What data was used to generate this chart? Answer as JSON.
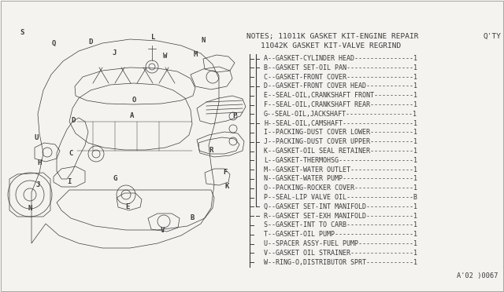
{
  "bg_color": "#f5f3ef",
  "notes_header": "NOTES; 11011K GASKET KIT-ENGINE REPAIR",
  "notes_sub": "11042K GASKET KIT-VALVE REGRIND",
  "qty_header": "Q'TY",
  "footer": "A'02 )0067",
  "parts": [
    {
      "label": "A",
      "desc": "GASKET-CYLINDER HEAD",
      "qty": "1",
      "lvl": 2
    },
    {
      "label": "B",
      "desc": "GASKET SET-OIL PAN",
      "qty": "1",
      "lvl": 2
    },
    {
      "label": "C",
      "desc": "GASKET-FRONT COVER",
      "qty": "1",
      "lvl": 3
    },
    {
      "label": "D",
      "desc": "GASKET-FRONT COVER HEAD",
      "qty": "1",
      "lvl": 2
    },
    {
      "label": "E",
      "desc": "SEAL-OIL,CRANKSHAFT FRONT",
      "qty": "1",
      "lvl": 3
    },
    {
      "label": "F",
      "desc": "SEAL-OIL,CRANKSHAFT REAR",
      "qty": "1",
      "lvl": 3
    },
    {
      "label": "G",
      "desc": "SEAL-OIL,JACKSHAFT",
      "qty": "1",
      "lvl": 3
    },
    {
      "label": "H",
      "desc": "SEAL-OIL,CAMSHAFT",
      "qty": "1",
      "lvl": 2
    },
    {
      "label": "I",
      "desc": "PACKING-DUST COVER LOWER",
      "qty": "1",
      "lvl": 3
    },
    {
      "label": "J",
      "desc": "PACKING-DUST COVER UPPER",
      "qty": "1",
      "lvl": 2
    },
    {
      "label": "K",
      "desc": "GASKET-OIL SEAL RETAINER",
      "qty": "1",
      "lvl": 3
    },
    {
      "label": "L",
      "desc": "GASKET-THERMOHSG",
      "qty": "1",
      "lvl": 3
    },
    {
      "label": "M",
      "desc": "GASKET-WATER OUTLET",
      "qty": "1",
      "lvl": 3
    },
    {
      "label": "N",
      "desc": "GASKET-WATER PUMP",
      "qty": "1",
      "lvl": 3
    },
    {
      "label": "O",
      "desc": "PACKING-ROCKER COVER",
      "qty": "1",
      "lvl": 3
    },
    {
      "label": "P",
      "desc": "SEAL-LIP VALVE OIL",
      "qty": "B",
      "lvl": 3
    },
    {
      "label": "Q",
      "desc": "GASKET SET-INT MANIFOLD",
      "qty": "1",
      "lvl": 2
    },
    {
      "label": "R",
      "desc": "GASKET SET-EXH MANIFOLD",
      "qty": "1",
      "lvl": 2
    },
    {
      "label": "S",
      "desc": "GASKET-INT TO CARB",
      "qty": "1",
      "lvl": 3
    },
    {
      "label": "T",
      "desc": "GASKET-OIL PUMP",
      "qty": "1",
      "lvl": 3
    },
    {
      "label": "U",
      "desc": "SPACER ASSY-FUEL PUMP",
      "qty": "1",
      "lvl": 3
    },
    {
      "label": "V",
      "desc": "GASKET OIL STRAINER",
      "qty": "1",
      "lvl": 3
    },
    {
      "label": "W",
      "desc": "RING-O,DISTRIBUTOR SPRT",
      "qty": "1",
      "lvl": 3
    }
  ],
  "text_color": "#3a3a3a",
  "line_color": "#3a3a3a",
  "font_size_header": 6.8,
  "font_size_parts": 6.0,
  "font_size_footer": 6.2
}
